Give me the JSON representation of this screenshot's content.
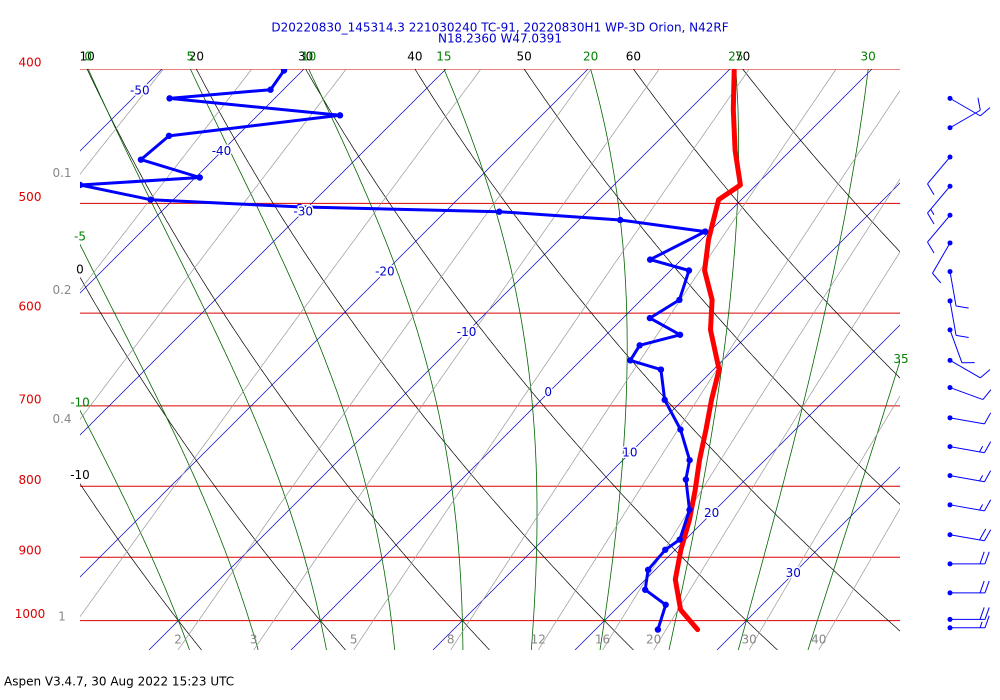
{
  "chart_data": {
    "type": "skew-t",
    "title": "D20220830_145314.3 221030240 TC-91, 20220830H1 WP-3D Orion, N42RF",
    "subtitle": "N18.2360 W47.0391",
    "footer": "Aspen V3.4.7, 30 Aug 2022  15:23 UTC",
    "ylim": [
      1050,
      400
    ],
    "yticks": [
      400,
      500,
      600,
      700,
      800,
      900,
      1000
    ],
    "log_y": true,
    "isotherms": [
      -50,
      -40,
      -30,
      -20,
      -10,
      0,
      10,
      20,
      30
    ],
    "dry_adiabats": [
      -10,
      0,
      10,
      20,
      30,
      40,
      50,
      60,
      70
    ],
    "moist_adiabats": [
      -10,
      -5,
      0,
      5,
      10,
      15,
      20,
      25,
      30,
      35
    ],
    "mixing_ratios": [
      0.1,
      0.2,
      0.4,
      1,
      2,
      3,
      5,
      8,
      12,
      16,
      20,
      30,
      40
    ],
    "series": [
      {
        "color": "#ff0000",
        "line_width": 5,
        "markers": false,
        "pressure": [
          1015,
          982,
          934,
          889,
          846,
          805,
          766,
          728,
          693,
          659,
          617,
          587,
          559,
          531,
          497,
          485,
          458,
          428,
          401
        ],
        "values": [
          27.2,
          24.6,
          22.1,
          20.4,
          18.9,
          17.2,
          15.4,
          13.7,
          12.0,
          10.4,
          7.0,
          5.0,
          2.4,
          0.5,
          -1.6,
          -1.1,
          -3.9,
          -6.9,
          -9.6
        ]
      },
      {
        "color": "#0000ff",
        "line_width": 3,
        "markers": true,
        "pressure": [
          1015,
          974,
          950,
          919,
          889,
          874,
          832,
          791,
          766,
          728,
          693,
          659,
          649,
          633,
          622,
          605,
          587,
          559,
          549,
          524,
          514,
          507,
          503,
          497,
          485,
          479,
          465,
          447,
          432,
          420,
          414,
          401
        ],
        "values": [
          24.4,
          23.2,
          20.7,
          19.5,
          19.3,
          19.6,
          18.2,
          15.8,
          14.7,
          11.9,
          8.7,
          6.3,
          3.5,
          3.1,
          5.2,
          1.9,
          2.7,
          1.3,
          -2.2,
          -0.3,
          -7.1,
          -16.2,
          -30.6,
          -41.6,
          -47.6,
          -39.7,
          -45.1,
          -44.8,
          -34.2,
          -47.4,
          -40.9,
          -41.3
        ]
      }
    ],
    "wind": {
      "color": "#0000ff",
      "pressure": [
        420,
        441,
        463,
        486,
        510,
        534,
        560,
        588,
        617,
        649,
        679,
        714,
        749,
        786,
        825,
        867,
        910,
        955,
        998,
        1012
      ],
      "direction": [
        120,
        60,
        220,
        220,
        220,
        210,
        170,
        170,
        160,
        120,
        110,
        100,
        100,
        100,
        100,
        100,
        90,
        90,
        90,
        90
      ],
      "speed": [
        10,
        10,
        10,
        15,
        10,
        10,
        10,
        10,
        10,
        10,
        10,
        10,
        15,
        15,
        15,
        20,
        20,
        20,
        20,
        15
      ]
    }
  }
}
